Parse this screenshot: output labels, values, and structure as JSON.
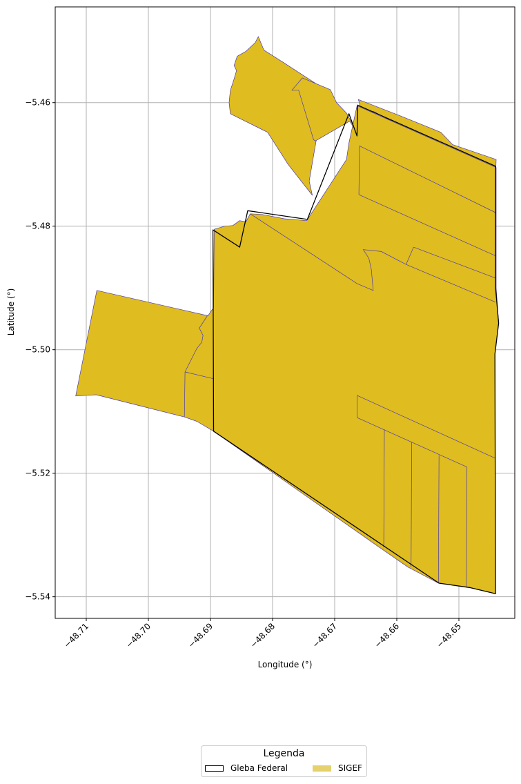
{
  "chart_data": {
    "type": "map",
    "xlabel": "Longitude (°)",
    "ylabel": "Latitude (°)",
    "xlim": [
      -48.715,
      -48.641
    ],
    "ylim": [
      -5.5435,
      -5.4445
    ],
    "x_ticks": [
      -48.71,
      -48.7,
      -48.69,
      -48.68,
      -48.67,
      -48.66,
      -48.65
    ],
    "x_tick_labels": [
      "−48.71",
      "−48.70",
      "−48.69",
      "−48.68",
      "−48.67",
      "−48.66",
      "−48.65"
    ],
    "y_ticks": [
      -5.46,
      -5.48,
      -5.5,
      -5.52,
      -5.54
    ],
    "y_tick_labels": [
      "−5.46",
      "−5.48",
      "−5.50",
      "−5.52",
      "−5.54"
    ],
    "grid": true,
    "colors": {
      "sigef_fill": "#dfbc1f",
      "sigef_edge": "#4b3bb0",
      "gleba_edge": "#000000",
      "grid": "#b0b0b0"
    },
    "layers": [
      {
        "name": "SIGEF",
        "polygons": [
          [
            [
              -48.6823,
              -5.4493
            ],
            [
              -48.6828,
              -5.4503
            ],
            [
              -48.6843,
              -5.4517
            ],
            [
              -48.6857,
              -5.4525
            ],
            [
              -48.6862,
              -5.454
            ],
            [
              -48.6858,
              -5.4548
            ],
            [
              -48.6863,
              -5.4565
            ],
            [
              -48.6868,
              -5.458
            ],
            [
              -48.687,
              -5.46
            ],
            [
              -48.6868,
              -5.4618
            ],
            [
              -48.6808,
              -5.4648
            ],
            [
              -48.6775,
              -5.47
            ],
            [
              -48.6736,
              -5.475
            ],
            [
              -48.6741,
              -5.4727
            ],
            [
              -48.6733,
              -5.468
            ],
            [
              -48.6722,
              -5.4617
            ],
            [
              -48.6706,
              -5.4585
            ],
            [
              -48.6781,
              -5.4536
            ],
            [
              -48.6814,
              -5.4515
            ]
          ],
          [
            [
              -48.6769,
              -5.458
            ],
            [
              -48.6752,
              -5.456
            ],
            [
              -48.6707,
              -5.4579
            ],
            [
              -48.6697,
              -5.46
            ],
            [
              -48.6681,
              -5.4617
            ],
            [
              -48.667,
              -5.4637
            ],
            [
              -48.6662,
              -5.4642
            ],
            [
              -48.6658,
              -5.4625
            ],
            [
              -48.666,
              -5.4601
            ],
            [
              -48.6662,
              -5.4595
            ],
            [
              -48.6598,
              -5.462
            ],
            [
              -48.6529,
              -5.4648
            ],
            [
              -48.651,
              -5.4668
            ],
            [
              -48.644,
              -5.4692
            ],
            [
              -48.6441,
              -5.4721
            ],
            [
              -48.6479,
              -5.47
            ],
            [
              -48.6638,
              -5.4614
            ],
            [
              -48.6644,
              -5.4624
            ],
            [
              -48.666,
              -5.4654
            ],
            [
              -48.6676,
              -5.463
            ],
            [
              -48.6731,
              -5.4662
            ],
            [
              -48.6734,
              -5.466
            ],
            [
              -48.6758,
              -5.458
            ]
          ],
          [
            [
              -48.6894,
              -5.4805
            ],
            [
              -48.6877,
              -5.48
            ],
            [
              -48.6864,
              -5.4799
            ],
            [
              -48.6853,
              -5.4791
            ],
            [
              -48.6843,
              -5.4793
            ],
            [
              -48.6836,
              -5.478
            ],
            [
              -48.6817,
              -5.4781
            ],
            [
              -48.6781,
              -5.4788
            ],
            [
              -48.6745,
              -5.4791
            ],
            [
              -48.6681,
              -5.4692
            ],
            [
              -48.6677,
              -5.4665
            ],
            [
              -48.6664,
              -5.4605
            ],
            [
              -48.644,
              -5.4705
            ],
            [
              -48.644,
              -5.49
            ],
            [
              -48.6436,
              -5.4957
            ],
            [
              -48.6442,
              -5.5007
            ],
            [
              -48.6441,
              -5.5395
            ],
            [
              -48.6483,
              -5.5385
            ],
            [
              -48.6533,
              -5.5378
            ],
            [
              -48.6582,
              -5.5352
            ],
            [
              -48.6628,
              -5.532
            ],
            [
              -48.6895,
              -5.5132
            ],
            [
              -48.6922,
              -5.5116
            ],
            [
              -48.6942,
              -5.5109
            ],
            [
              -48.7084,
              -5.5073
            ],
            [
              -48.7117,
              -5.5075
            ],
            [
              -48.7083,
              -5.4904
            ],
            [
              -48.6904,
              -5.4945
            ],
            [
              -48.6895,
              -5.4932
            ]
          ]
        ],
        "parcel_lines": [
          [
            [
              -48.666,
              -5.467
            ],
            [
              -48.6441,
              -5.4778
            ]
          ],
          [
            [
              -48.666,
              -5.467
            ],
            [
              -48.6661,
              -5.4749
            ]
          ],
          [
            [
              -48.6661,
              -5.4749
            ],
            [
              -48.6441,
              -5.4848
            ]
          ],
          [
            [
              -48.6836,
              -5.478
            ],
            [
              -48.6664,
              -5.4893
            ]
          ],
          [
            [
              -48.6664,
              -5.4893
            ],
            [
              -48.6638,
              -5.4904
            ],
            [
              -48.6641,
              -5.487
            ],
            [
              -48.6645,
              -5.4852
            ],
            [
              -48.6654,
              -5.4838
            ],
            [
              -48.6625,
              -5.4841
            ],
            [
              -48.6585,
              -5.4862
            ],
            [
              -48.6441,
              -5.4923
            ]
          ],
          [
            [
              -48.6573,
              -5.4834
            ],
            [
              -48.6585,
              -5.4862
            ]
          ],
          [
            [
              -48.6573,
              -5.4834
            ],
            [
              -48.6441,
              -5.4884
            ]
          ],
          [
            [
              -48.6905,
              -5.4945
            ],
            [
              -48.6918,
              -5.4965
            ],
            [
              -48.6912,
              -5.4977
            ],
            [
              -48.6914,
              -5.4988
            ],
            [
              -48.6922,
              -5.4998
            ],
            [
              -48.6941,
              -5.5036
            ],
            [
              -48.6942,
              -5.5109
            ]
          ],
          [
            [
              -48.6941,
              -5.5036
            ],
            [
              -48.6895,
              -5.5047
            ]
          ],
          [
            [
              -48.6664,
              -5.5074
            ],
            [
              -48.6441,
              -5.5176
            ]
          ],
          [
            [
              -48.6664,
              -5.5074
            ],
            [
              -48.6664,
              -5.511
            ]
          ],
          [
            [
              -48.6664,
              -5.511
            ],
            [
              -48.6487,
              -5.519
            ]
          ],
          [
            [
              -48.6487,
              -5.519
            ],
            [
              -48.6488,
              -5.5385
            ]
          ],
          [
            [
              -48.662,
              -5.5129
            ],
            [
              -48.6621,
              -5.532
            ]
          ],
          [
            [
              -48.6576,
              -5.515
            ],
            [
              -48.6577,
              -5.5352
            ]
          ],
          [
            [
              -48.6532,
              -5.5171
            ],
            [
              -48.6533,
              -5.5378
            ]
          ]
        ]
      },
      {
        "name": "Gleba Federal",
        "polygons": [
          [
            [
              -48.6896,
              -5.4806
            ],
            [
              -48.6853,
              -5.4834
            ],
            [
              -48.684,
              -5.4775
            ],
            [
              -48.6744,
              -5.4789
            ],
            [
              -48.6677,
              -5.4618
            ],
            [
              -48.6664,
              -5.4654
            ],
            [
              -48.6663,
              -5.4604
            ],
            [
              -48.6441,
              -5.4703
            ],
            [
              -48.6441,
              -5.49
            ],
            [
              -48.6436,
              -5.4957
            ],
            [
              -48.6442,
              -5.5007
            ],
            [
              -48.6441,
              -5.5395
            ],
            [
              -48.6483,
              -5.5385
            ],
            [
              -48.6532,
              -5.5378
            ],
            [
              -48.6895,
              -5.5132
            ]
          ]
        ]
      }
    ],
    "legend": {
      "title": "Legenda",
      "entries": [
        "Gleba Federal",
        "SIGEF"
      ],
      "placement": "bottom-center, below plot"
    }
  }
}
